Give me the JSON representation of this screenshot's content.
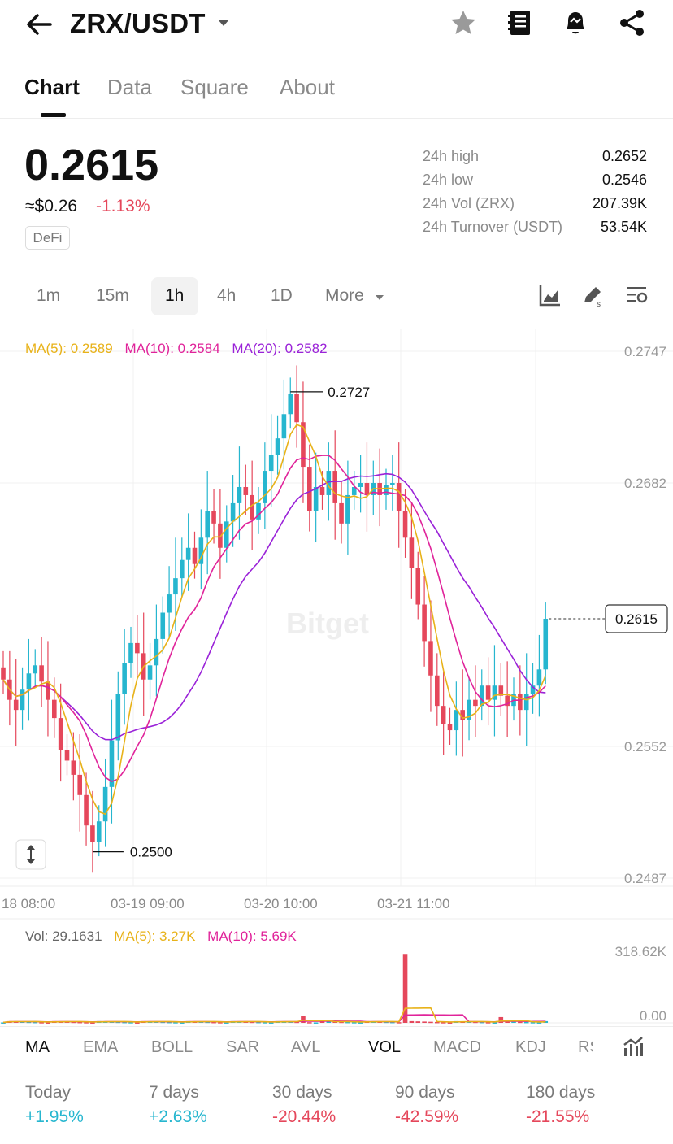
{
  "header": {
    "pair": "ZRX/USDT",
    "icons": [
      "back-arrow-icon",
      "caret-down-icon",
      "star-icon",
      "notebook-icon",
      "bell-alert-icon",
      "share-icon"
    ]
  },
  "tabs": [
    {
      "label": "Chart",
      "active": true
    },
    {
      "label": "Data",
      "active": false
    },
    {
      "label": "Square",
      "active": false
    },
    {
      "label": "About",
      "active": false
    }
  ],
  "ticker": {
    "price": "0.2615",
    "usd": "≈$0.26",
    "change": "-1.13%",
    "tag": "DeFi"
  },
  "stats": [
    {
      "label": "24h high",
      "value": "0.2652"
    },
    {
      "label": "24h low",
      "value": "0.2546"
    },
    {
      "label": "24h Vol (ZRX)",
      "value": "207.39K"
    },
    {
      "label": "24h Turnover (USDT)",
      "value": "53.54K"
    }
  ],
  "intervals": [
    {
      "label": "1m",
      "active": false
    },
    {
      "label": "15m",
      "active": false
    },
    {
      "label": "1h",
      "active": true
    },
    {
      "label": "4h",
      "active": false
    },
    {
      "label": "1D",
      "active": false
    },
    {
      "label": "More",
      "active": false
    }
  ],
  "chart_tools": [
    "chart-type-icon",
    "draw-tool-icon",
    "chart-settings-icon"
  ],
  "ma_legend": [
    {
      "label": "MA(5): 0.2589",
      "color": "#e8b219"
    },
    {
      "label": "MA(10): 0.2584",
      "color": "#e0239a"
    },
    {
      "label": "MA(20): 0.2582",
      "color": "#9a22d8"
    }
  ],
  "colors": {
    "up": "#26b6cf",
    "down": "#e5475b",
    "ma5": "#e8b219",
    "ma10": "#e0239a",
    "ma20": "#9a22d8"
  },
  "chart_data": {
    "type": "candlestick",
    "watermark": "Bitget",
    "y_ticks": [
      "0.2747",
      "0.2682",
      "0.2552",
      "0.2487"
    ],
    "ylim": [
      0.2487,
      0.2747
    ],
    "x_ticks": [
      "18 08:00",
      "03-19 09:00",
      "03-20 10:00",
      "03-21 11:00"
    ],
    "high_label": "0.2727",
    "low_label": "0.2500",
    "last_price_label": "0.2615",
    "price_path": [
      0.2585,
      0.2575,
      0.257,
      0.258,
      0.2588,
      0.2592,
      0.2584,
      0.2575,
      0.2566,
      0.255,
      0.2545,
      0.2538,
      0.2528,
      0.2513,
      0.2505,
      0.2515,
      0.2532,
      0.2555,
      0.2578,
      0.2593,
      0.2603,
      0.2598,
      0.2585,
      0.2592,
      0.2605,
      0.2618,
      0.2627,
      0.2635,
      0.2644,
      0.265,
      0.2642,
      0.2655,
      0.2668,
      0.2662,
      0.265,
      0.2663,
      0.2672,
      0.268,
      0.2676,
      0.2664,
      0.2672,
      0.2688,
      0.2696,
      0.2704,
      0.2716,
      0.2726,
      0.2712,
      0.269,
      0.2668,
      0.268,
      0.2676,
      0.2688,
      0.2672,
      0.2662,
      0.2676,
      0.268,
      0.2682,
      0.2676,
      0.2682,
      0.2676,
      0.2681,
      0.2682,
      0.2668,
      0.2655,
      0.264,
      0.2622,
      0.2604,
      0.2587,
      0.2572,
      0.2563,
      0.256,
      0.257,
      0.2565,
      0.2575,
      0.2572,
      0.2582,
      0.2575,
      0.2582,
      0.2577,
      0.2572,
      0.2578,
      0.257,
      0.2578,
      0.2582,
      0.259,
      0.2615
    ],
    "volume_ylim": [
      0,
      318620
    ],
    "volume_ticks": [
      "318.62K",
      "0.00"
    ],
    "volume_legend": {
      "vol": "Vol: 29.1631",
      "ma5": "MA(5): 3.27K",
      "ma10": "MA(10): 5.69K"
    },
    "volume_spikes": [
      {
        "index": 63,
        "value": 300000
      },
      {
        "index": 47,
        "value": 30000
      },
      {
        "index": 78,
        "value": 25000
      }
    ]
  },
  "indicators": [
    {
      "label": "MA",
      "active": true
    },
    {
      "label": "EMA",
      "active": false
    },
    {
      "label": "BOLL",
      "active": false
    },
    {
      "label": "SAR",
      "active": false
    },
    {
      "label": "AVL",
      "active": false
    },
    {
      "label": "VOL",
      "active": true
    },
    {
      "label": "MACD",
      "active": false
    },
    {
      "label": "KDJ",
      "active": false
    },
    {
      "label": "RSI",
      "active": false
    }
  ],
  "performance": [
    {
      "label": "Today",
      "value": "+1.95%",
      "color": "#26b6cf"
    },
    {
      "label": "7 days",
      "value": "+2.63%",
      "color": "#26b6cf"
    },
    {
      "label": "30 days",
      "value": "-20.44%",
      "color": "#e5475b"
    },
    {
      "label": "90 days",
      "value": "-42.59%",
      "color": "#e5475b"
    },
    {
      "label": "180 days",
      "value": "-21.55%",
      "color": "#e5475b"
    }
  ]
}
